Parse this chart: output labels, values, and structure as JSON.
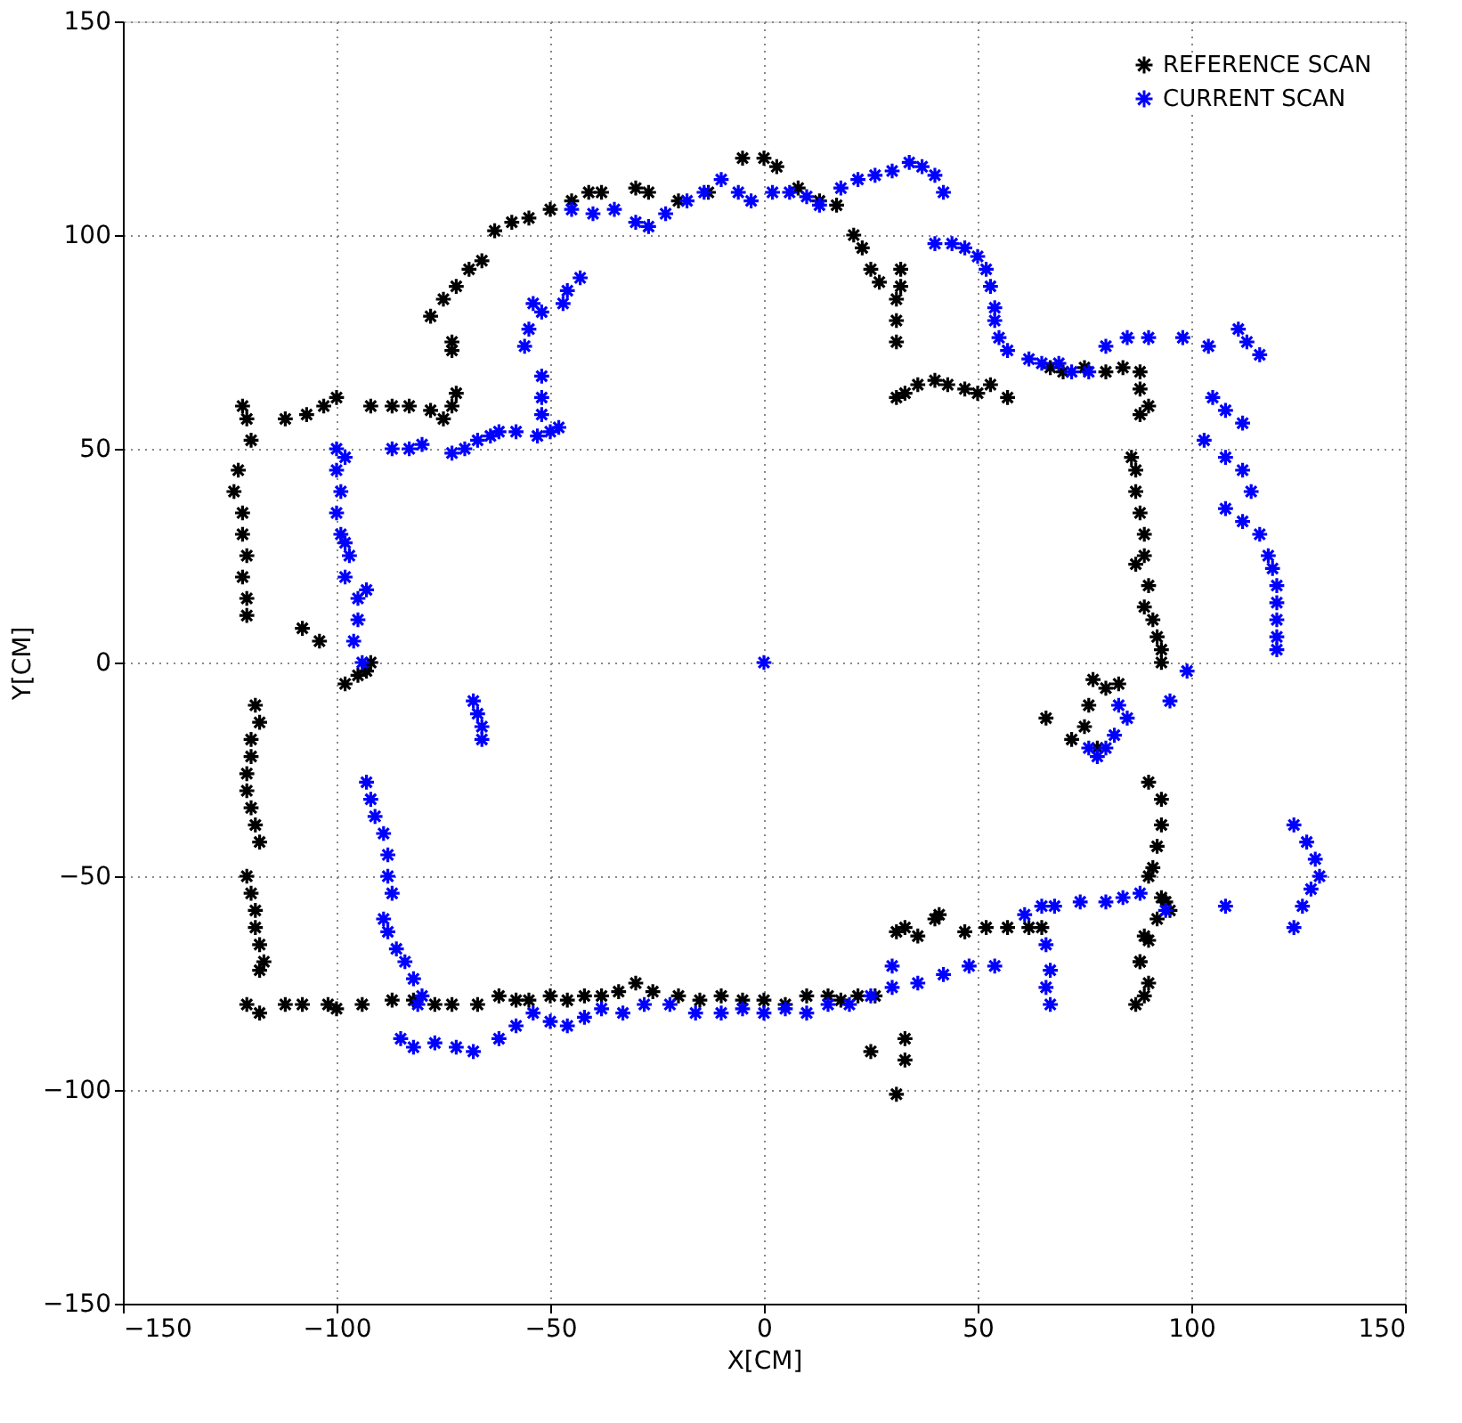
{
  "chart_data": {
    "type": "scatter",
    "xlabel": "X[CM]",
    "ylabel": "Y[CM]",
    "xlim": [
      -150,
      150
    ],
    "ylim": [
      -150,
      150
    ],
    "xticks": [
      -150,
      -100,
      -50,
      0,
      50,
      100,
      150
    ],
    "yticks": [
      -150,
      -100,
      -50,
      0,
      50,
      100,
      150
    ],
    "grid": true,
    "legend": "top right",
    "marker": "cross",
    "series": [
      {
        "name": "REFERENCE SCAN",
        "color": "#000000",
        "x": [
          -122,
          -121,
          -120,
          -123,
          -124,
          -122,
          -122,
          -121,
          -122,
          -121,
          -121,
          -108,
          -104,
          -98,
          -95,
          -93,
          -92,
          -112,
          -107,
          -103,
          -100,
          -92,
          -87,
          -83,
          -78,
          -75,
          -73,
          -72,
          -73,
          -73,
          -78,
          -75,
          -72,
          -69,
          -66,
          -63,
          -59,
          -55,
          -50,
          -45,
          -41,
          -38,
          -30,
          -27,
          -20,
          -13,
          -5,
          0,
          3,
          8,
          13,
          17,
          21,
          23,
          25,
          27,
          32,
          32,
          31,
          33,
          31,
          31,
          31,
          36,
          40,
          43,
          47,
          50,
          53,
          57,
          67,
          70,
          75,
          80,
          84,
          88,
          88,
          90,
          88,
          86,
          87,
          87,
          88,
          89,
          89,
          87,
          90,
          89,
          91,
          92,
          93,
          93,
          66,
          77,
          80,
          76,
          75,
          72,
          78,
          83,
          90,
          93,
          93,
          92,
          91,
          90,
          93,
          95,
          89,
          88,
          90,
          87,
          89,
          25,
          33,
          33,
          31,
          31,
          33,
          36,
          40,
          41,
          47,
          52,
          57,
          62,
          65,
          88,
          90,
          92,
          94,
          -121,
          -118,
          -112,
          -108,
          -102,
          -100,
          -94,
          -87,
          -82,
          -77,
          -73,
          -67,
          -62,
          -58,
          -55,
          -50,
          -46,
          -42,
          -38,
          -34,
          -30,
          -26,
          -20,
          -15,
          -10,
          -5,
          0,
          5,
          10,
          15,
          18,
          22,
          26,
          -119,
          -118,
          -120,
          -120,
          -121,
          -121,
          -120,
          -119,
          -118,
          -121,
          -120,
          -119,
          -119,
          -118,
          -117,
          -118
        ],
        "values": [
          60,
          57,
          52,
          45,
          40,
          35,
          30,
          25,
          20,
          15,
          11,
          8,
          5,
          -5,
          -3,
          -2,
          0,
          57,
          58,
          60,
          62,
          60,
          60,
          60,
          59,
          57,
          60,
          63,
          73,
          75,
          81,
          85,
          88,
          92,
          94,
          101,
          103,
          104,
          106,
          108,
          110,
          110,
          111,
          110,
          108,
          110,
          118,
          118,
          116,
          111,
          108,
          107,
          100,
          97,
          92,
          89,
          88,
          92,
          62,
          63,
          80,
          85,
          75,
          65,
          66,
          65,
          64,
          63,
          65,
          62,
          69,
          68,
          69,
          68,
          69,
          68,
          64,
          60,
          58,
          48,
          45,
          40,
          35,
          30,
          25,
          23,
          18,
          13,
          10,
          6,
          3,
          0,
          -13,
          -4,
          -6,
          -10,
          -15,
          -18,
          -20,
          -5,
          -28,
          -32,
          -38,
          -43,
          -48,
          -50,
          -55,
          -58,
          -64,
          -70,
          -75,
          -80,
          -78,
          -91,
          -88,
          -93,
          -101,
          -63,
          -62,
          -64,
          -60,
          -59,
          -63,
          -62,
          -62,
          -62,
          -62,
          -70,
          -65,
          -60,
          -56,
          -80,
          -82,
          -80,
          -80,
          -80,
          -81,
          -80,
          -79,
          -79,
          -80,
          -80,
          -80,
          -78,
          -79,
          -79,
          -78,
          -79,
          -78,
          -78,
          -77,
          -75,
          -77,
          -78,
          -79,
          -78,
          -79,
          -79,
          -80,
          -78,
          -78,
          -79,
          -78,
          -78,
          -10,
          -14,
          -18,
          -22,
          -26,
          -30,
          -34,
          -38,
          -42,
          -50,
          -54,
          -58,
          -62,
          -66,
          -70,
          -72
        ]
      },
      {
        "name": "CURRENT SCAN",
        "color": "#0000ff",
        "x": [
          0,
          -100,
          -98,
          -100,
          -99,
          -100,
          -99,
          -98,
          -97,
          -98,
          -95,
          -93,
          -95,
          -96,
          -94,
          -87,
          -83,
          -80,
          -73,
          -70,
          -67,
          -64,
          -62,
          -58,
          -53,
          -50,
          -48,
          -52,
          -52,
          -52,
          -56,
          -55,
          -52,
          -54,
          -47,
          -46,
          -43,
          -45,
          -40,
          -35,
          -30,
          -27,
          -23,
          -18,
          -14,
          -10,
          -6,
          -3,
          2,
          6,
          10,
          13,
          18,
          22,
          26,
          30,
          34,
          37,
          40,
          42,
          40,
          44,
          47,
          50,
          52,
          53,
          54,
          54,
          55,
          57,
          62,
          65,
          69,
          72,
          76,
          80,
          85,
          90,
          98,
          104,
          111,
          113,
          116,
          105,
          108,
          112,
          103,
          108,
          112,
          114,
          108,
          112,
          116,
          118,
          119,
          120,
          120,
          120,
          120,
          120,
          99,
          95,
          83,
          85,
          82,
          80,
          78,
          76,
          124,
          127,
          129,
          130,
          128,
          126,
          124,
          61,
          65,
          68,
          74,
          80,
          84,
          88,
          94,
          108,
          66,
          67,
          66,
          67,
          -85,
          -82,
          -77,
          -72,
          -68,
          -62,
          -58,
          -54,
          -50,
          -46,
          -42,
          -38,
          -33,
          -28,
          -22,
          -16,
          -10,
          -5,
          0,
          5,
          10,
          15,
          20,
          25,
          30,
          36,
          42,
          48,
          54,
          30,
          -93,
          -92,
          -91,
          -89,
          -88,
          -88,
          -87,
          -89,
          -88,
          -86,
          -84,
          -82,
          -80,
          -81,
          -68,
          -67,
          -66,
          -66
        ],
        "values": [
          0,
          50,
          48,
          45,
          40,
          35,
          30,
          28,
          25,
          20,
          15,
          17,
          10,
          5,
          0,
          50,
          50,
          51,
          49,
          50,
          52,
          53,
          54,
          54,
          53,
          54,
          55,
          58,
          62,
          67,
          74,
          78,
          82,
          84,
          84,
          87,
          90,
          106,
          105,
          106,
          103,
          102,
          105,
          108,
          110,
          113,
          110,
          108,
          110,
          110,
          109,
          107,
          111,
          113,
          114,
          115,
          117,
          116,
          114,
          110,
          98,
          98,
          97,
          95,
          92,
          88,
          83,
          80,
          76,
          73,
          71,
          70,
          70,
          68,
          68,
          74,
          76,
          76,
          76,
          74,
          78,
          75,
          72,
          62,
          59,
          56,
          52,
          48,
          45,
          40,
          36,
          33,
          30,
          25,
          22,
          18,
          14,
          10,
          6,
          3,
          -2,
          -9,
          -10,
          -13,
          -17,
          -20,
          -22,
          -20,
          -38,
          -42,
          -46,
          -50,
          -53,
          -57,
          -62,
          -59,
          -57,
          -57,
          -56,
          -56,
          -55,
          -54,
          -58,
          -57,
          -66,
          -72,
          -76,
          -80,
          -88,
          -90,
          -89,
          -90,
          -91,
          -88,
          -85,
          -82,
          -84,
          -85,
          -83,
          -81,
          -82,
          -80,
          -80,
          -82,
          -82,
          -81,
          -82,
          -81,
          -82,
          -80,
          -80,
          -78,
          -76,
          -75,
          -73,
          -71,
          -71,
          -71,
          -28,
          -32,
          -36,
          -40,
          -45,
          -50,
          -54,
          -60,
          -63,
          -67,
          -70,
          -74,
          -78,
          -80,
          -9,
          -12,
          -15,
          -18
        ]
      }
    ]
  }
}
